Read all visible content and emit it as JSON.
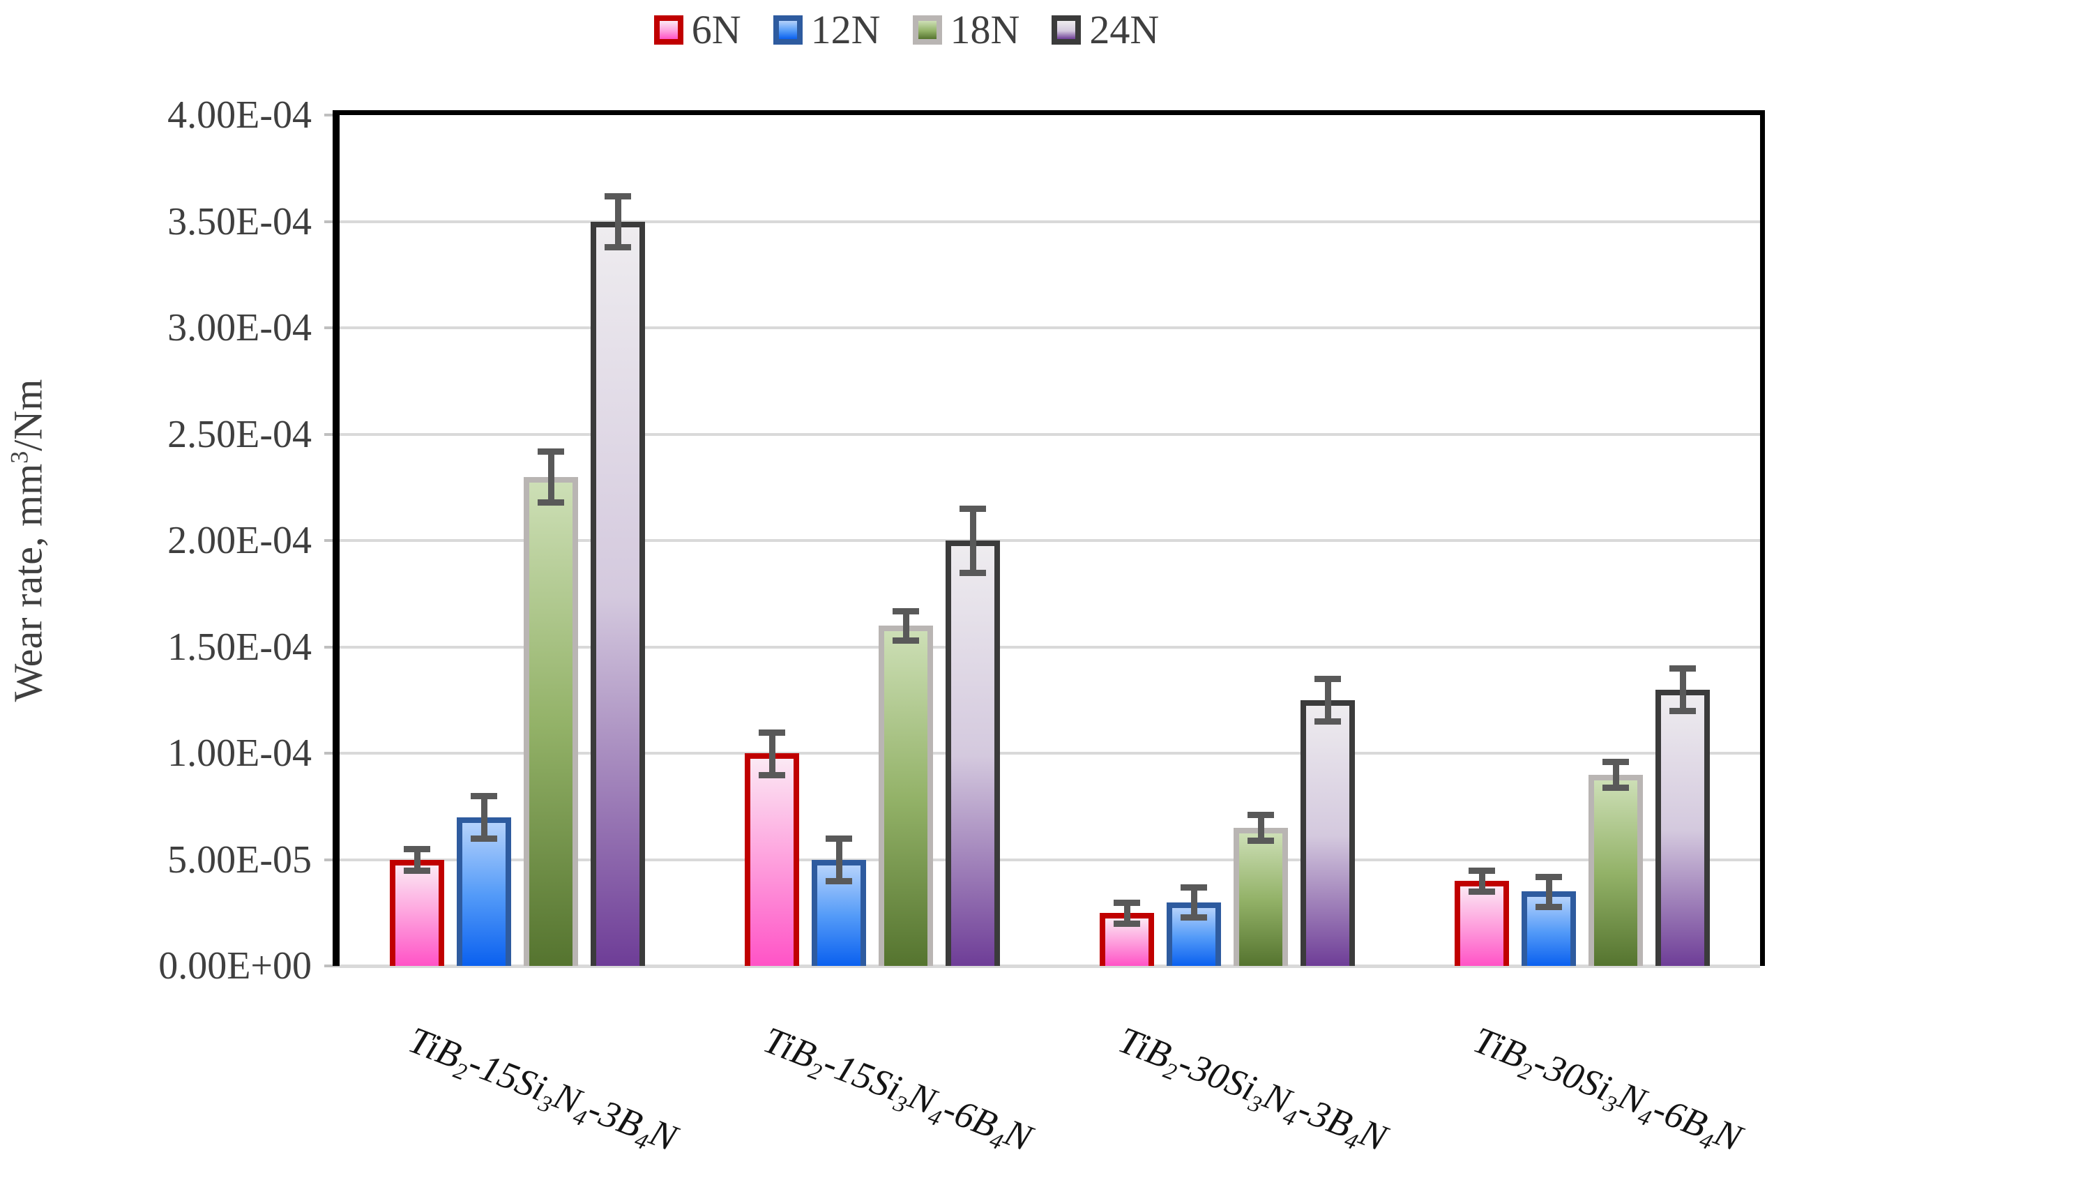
{
  "chart_data": {
    "type": "bar",
    "title": "",
    "ylabel": "Wear rate, mm^3/Nm",
    "xlabel": "",
    "ylim": [
      0,
      0.0004
    ],
    "grid": true,
    "legend_position": "top",
    "legend_labels": [
      "6N",
      "12N",
      "18N",
      "24N"
    ],
    "yticks": [
      {
        "value": 0.0,
        "label": "0.00E+00"
      },
      {
        "value": 5e-05,
        "label": "5.00E-05"
      },
      {
        "value": 0.0001,
        "label": "1.00E-04"
      },
      {
        "value": 0.00015,
        "label": "1.50E-04"
      },
      {
        "value": 0.0002,
        "label": "2.00E-04"
      },
      {
        "value": 0.00025,
        "label": "2.50E-04"
      },
      {
        "value": 0.0003,
        "label": "3.00E-04"
      },
      {
        "value": 0.00035,
        "label": "3.50E-04"
      },
      {
        "value": 0.0004,
        "label": "4.00E-04"
      }
    ],
    "categories": [
      "TiB_2-15Si_3N_4-3B_4N",
      "TiB_2-15Si_3N_4-6B_4N",
      "TiB_2-30Si_3N_4-3B_4N",
      "TiB_2-30Si_3N_4-6B_4N"
    ],
    "series": [
      {
        "name": "6N",
        "values": [
          5e-05,
          0.0001,
          2.5e-05,
          4e-05
        ],
        "errors": [
          5e-06,
          1e-05,
          5e-06,
          5e-06
        ],
        "border_color": "#C00000",
        "fill_top": "#FBE9F4",
        "fill_mid": "#FE9FDD",
        "fill_bottom": "#FF53C6"
      },
      {
        "name": "12N",
        "values": [
          7e-05,
          5e-05,
          3e-05,
          3.5e-05
        ],
        "errors": [
          1e-05,
          1e-05,
          7e-06,
          7e-06
        ],
        "border_color": "#2E5B9F",
        "fill_top": "#B5D2FB",
        "fill_mid": "#549BF8",
        "fill_bottom": "#0A60EF"
      },
      {
        "name": "18N",
        "values": [
          0.00023,
          0.00016,
          6.5e-05,
          9e-05
        ],
        "errors": [
          1.2e-05,
          7e-06,
          6e-06,
          6e-06
        ],
        "border_color": "#B9B5B3",
        "fill_top": "#CDDFB6",
        "fill_mid": "#93B268",
        "fill_bottom": "#55742F"
      },
      {
        "name": "24N",
        "values": [
          0.00035,
          0.0002,
          0.000125,
          0.00013
        ],
        "errors": [
          1.2e-05,
          1.5e-05,
          1e-05,
          1e-05
        ],
        "border_color": "#3B3B3B",
        "fill_top": "#EEECEF",
        "fill_mid": "#D4C9DE",
        "fill_bottom": "#6E3D97"
      }
    ],
    "colors": {
      "grid": "#D9D9D9",
      "tick": "#BFBFBF",
      "error_bar": "#595959",
      "axis_text": "#3F3F3F",
      "category_text": "#141414",
      "plot_border": "#000000",
      "bottom_axis": "#D9D9D9"
    }
  }
}
